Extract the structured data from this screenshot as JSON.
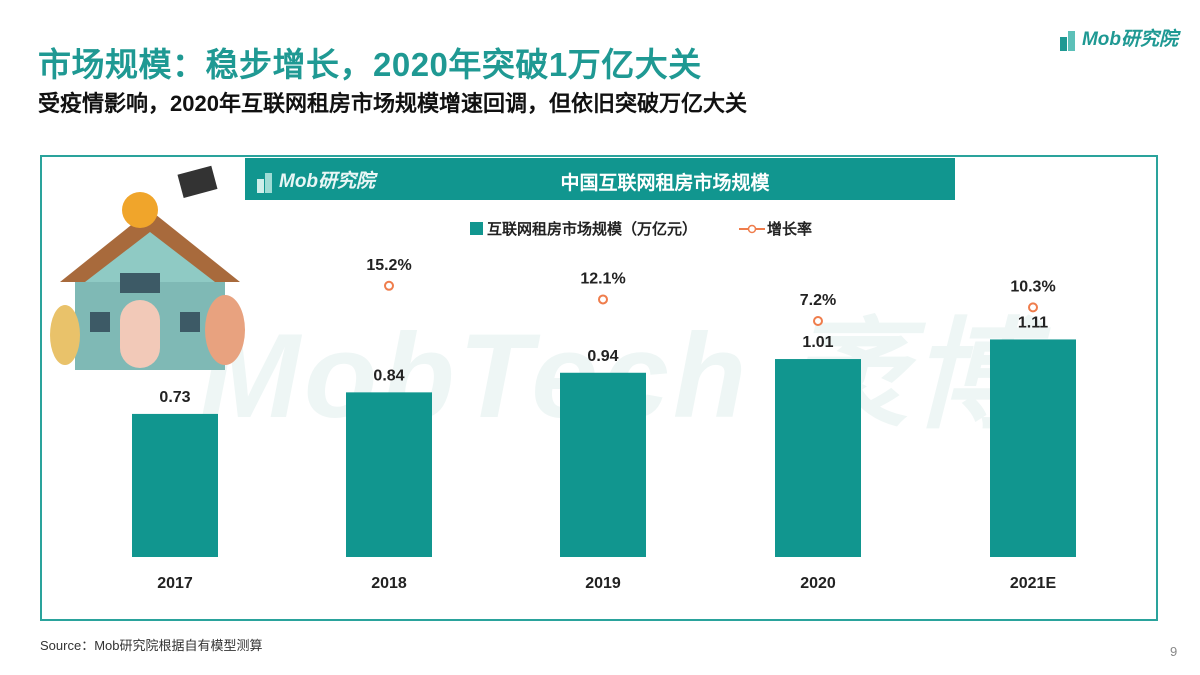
{
  "title": "市场规模：稳步增长，2020年突破1万亿大关",
  "subtitle": "受疫情影响，2020年互联网租房市场规模增速回调，但依旧突破万亿大关",
  "logo_text": "Mob研究院",
  "watermark": "MobTech 袤博",
  "source": "Source：Mob研究院根据自有模型测算",
  "page_number": "9",
  "colors": {
    "accent": "#1f9993",
    "bar": "#11968f",
    "line": "#ef7d4c"
  },
  "chart_data": {
    "type": "bar+line",
    "title": "中国互联网租房市场规模",
    "categories": [
      "2017",
      "2018",
      "2019",
      "2020",
      "2021E"
    ],
    "series": [
      {
        "name": "互联网租房市场规模（万亿元）",
        "type": "bar",
        "values": [
          0.73,
          0.84,
          0.94,
          1.01,
          1.11
        ],
        "labels": [
          "0.73",
          "0.84",
          "0.94",
          "1.01",
          "1.11"
        ]
      },
      {
        "name": "增长率",
        "type": "line",
        "values": [
          null,
          15.2,
          12.1,
          7.2,
          10.3
        ],
        "labels": [
          "",
          "15.2%",
          "12.1%",
          "7.2%",
          "10.3%"
        ]
      }
    ],
    "legend": "top-center",
    "grid": false
  }
}
